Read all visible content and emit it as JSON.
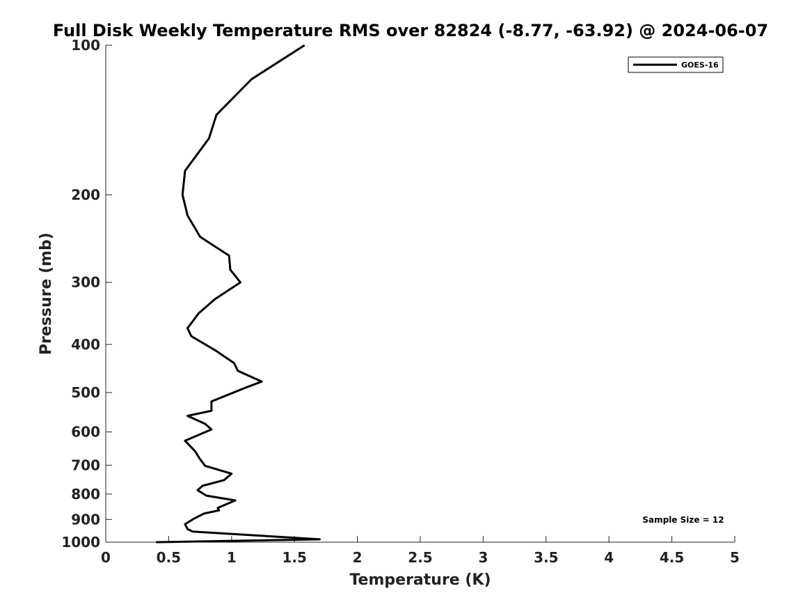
{
  "chart_data": {
    "type": "line",
    "title": "Full Disk Weekly Temperature RMS over 82824 (-8.77, -63.92) @ 2024-06-07",
    "xlabel": "Temperature (K)",
    "ylabel": "Pressure (mb)",
    "xlim": [
      0,
      5
    ],
    "ylim": [
      1000,
      100
    ],
    "y_scale": "log",
    "x_ticks": [
      0,
      0.5,
      1,
      1.5,
      2,
      2.5,
      3,
      3.5,
      4,
      4.5,
      5
    ],
    "x_tick_labels": [
      "0",
      "0.5",
      "1",
      "1.5",
      "2",
      "2.5",
      "3",
      "3.5",
      "4",
      "4.5",
      "5"
    ],
    "y_ticks": [
      100,
      200,
      300,
      400,
      500,
      600,
      700,
      800,
      900,
      1000
    ],
    "y_tick_labels": [
      "100",
      "200",
      "300",
      "400",
      "500",
      "600",
      "700",
      "800",
      "900",
      "1000"
    ],
    "grid": false,
    "legend_position": "top-right",
    "legend": [
      "GOES-16"
    ],
    "annotation": "Sample Size = 12",
    "series": [
      {
        "name": "GOES-16",
        "color": "#000000",
        "x": [
          1.58,
          1.16,
          0.88,
          0.82,
          0.63,
          0.61,
          0.65,
          0.75,
          0.98,
          0.99,
          1.07,
          0.87,
          0.74,
          0.65,
          0.68,
          0.87,
          1.02,
          1.05,
          1.24,
          1.1,
          0.84,
          0.84,
          0.65,
          0.79,
          0.84,
          0.63,
          0.71,
          0.75,
          0.79,
          1.0,
          0.94,
          0.77,
          0.73,
          0.8,
          1.03,
          0.89,
          0.9,
          0.78,
          0.7,
          0.63,
          0.65,
          0.69,
          1.7,
          0.4
        ],
        "y": [
          100,
          117,
          138,
          154,
          179,
          200,
          220,
          243,
          265,
          283,
          300,
          324,
          346,
          371,
          385,
          411,
          436,
          452,
          475,
          490,
          521,
          544,
          557,
          578,
          593,
          625,
          656,
          681,
          702,
          728,
          750,
          770,
          786,
          806,
          824,
          853,
          863,
          876,
          897,
          920,
          941,
          952,
          987,
          1000
        ]
      }
    ]
  }
}
